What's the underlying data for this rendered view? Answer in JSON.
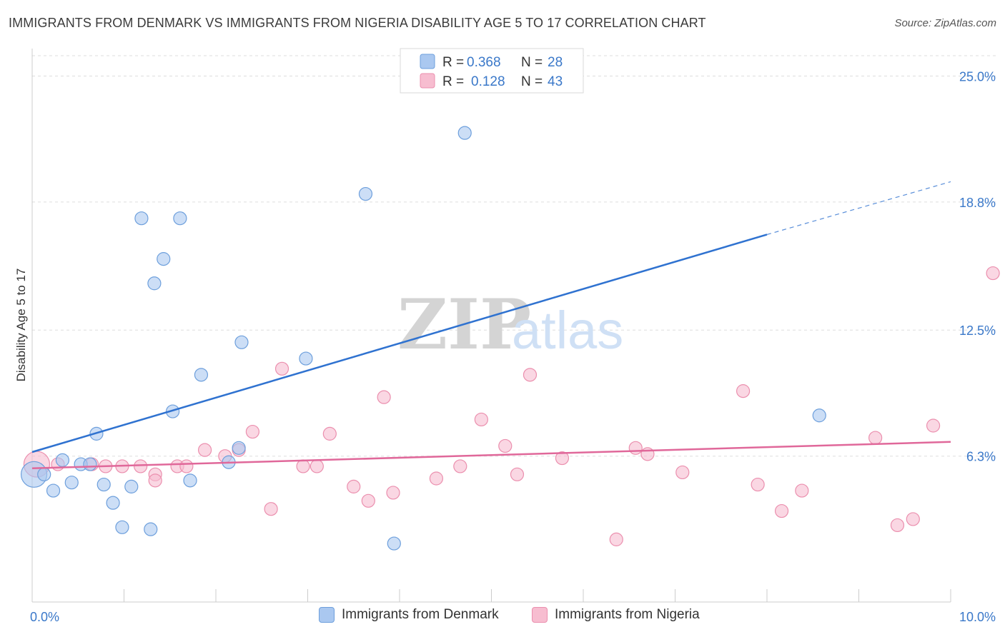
{
  "header": {
    "title": "IMMIGRANTS FROM DENMARK VS IMMIGRANTS FROM NIGERIA DISABILITY AGE 5 TO 17 CORRELATION CHART",
    "source": "Source: ZipAtlas.com"
  },
  "watermark": {
    "part1": "ZIP",
    "part2": "atlas"
  },
  "colors": {
    "denmark_fill": "#aac8f0",
    "denmark_stroke": "#6d9fdc",
    "denmark_line": "#2f72d0",
    "nigeria_fill": "#f7bdd0",
    "nigeria_stroke": "#eb8fae",
    "nigeria_line": "#e0689a",
    "axis_text": "#3a78c9",
    "grid": "#dddddd"
  },
  "legend_top": {
    "rows": [
      {
        "r_label": "R =",
        "r_value": "0.368",
        "n_label": "N =",
        "n_value": "28"
      },
      {
        "r_label": "R =",
        "r_value": "0.128",
        "n_label": "N =",
        "n_value": "43"
      }
    ]
  },
  "legend_bottom": {
    "items": [
      {
        "label": "Immigrants from Denmark"
      },
      {
        "label": "Immigrants from Nigeria"
      }
    ]
  },
  "chart_data": {
    "type": "scatter",
    "xlabel": "",
    "ylabel": "Disability Age 5 to 17",
    "xlim": [
      0,
      10
    ],
    "ylim": [
      0,
      26
    ],
    "x_tick_labels": [
      {
        "value": 0,
        "label": "0.0%"
      },
      {
        "value": 10,
        "label": "10.0%"
      }
    ],
    "x_minor_ticks": [
      0,
      1,
      2,
      3,
      4,
      5,
      6,
      7,
      8,
      9,
      10
    ],
    "y_ticks": [
      {
        "value": 6.3,
        "label": "6.3%"
      },
      {
        "value": 12.5,
        "label": "12.5%"
      },
      {
        "value": 18.8,
        "label": "18.8%"
      },
      {
        "value": 25.0,
        "label": "25.0%"
      }
    ],
    "grid": "horizontal-dashed",
    "legend": "top-center",
    "series": [
      {
        "name": "Immigrants from Denmark",
        "points": [
          [
            0.02,
            5.4
          ],
          [
            0.13,
            5.4
          ],
          [
            0.23,
            4.6
          ],
          [
            0.33,
            6.1
          ],
          [
            0.43,
            5.0
          ],
          [
            0.53,
            5.9
          ],
          [
            0.63,
            5.9
          ],
          [
            0.7,
            7.4
          ],
          [
            0.78,
            4.9
          ],
          [
            0.88,
            4.0
          ],
          [
            0.98,
            2.8
          ],
          [
            1.08,
            4.8
          ],
          [
            1.19,
            18.0
          ],
          [
            1.29,
            2.7
          ],
          [
            1.33,
            14.8
          ],
          [
            1.43,
            16.0
          ],
          [
            1.53,
            8.5
          ],
          [
            1.61,
            18.0
          ],
          [
            1.72,
            5.1
          ],
          [
            1.84,
            10.3
          ],
          [
            2.14,
            6.0
          ],
          [
            2.25,
            6.7
          ],
          [
            2.28,
            11.9
          ],
          [
            2.98,
            11.1
          ],
          [
            3.63,
            19.2
          ],
          [
            3.94,
            2.0
          ],
          [
            4.71,
            22.2
          ],
          [
            8.57,
            8.3
          ]
        ],
        "sizes": [
          [
            0.02,
            30
          ]
        ],
        "trend": {
          "x": [
            0,
            8
          ],
          "y": [
            6.5,
            17.2
          ],
          "dashed_to": [
            10,
            19.8
          ]
        }
      },
      {
        "name": "Immigrants from Nigeria",
        "points": [
          [
            0.05,
            5.9
          ],
          [
            0.28,
            5.9
          ],
          [
            0.65,
            5.9
          ],
          [
            0.8,
            5.8
          ],
          [
            0.98,
            5.8
          ],
          [
            1.18,
            5.8
          ],
          [
            1.34,
            5.4
          ],
          [
            1.34,
            5.1
          ],
          [
            1.58,
            5.8
          ],
          [
            1.68,
            5.8
          ],
          [
            1.88,
            6.6
          ],
          [
            2.1,
            6.3
          ],
          [
            2.25,
            6.6
          ],
          [
            2.4,
            7.5
          ],
          [
            2.6,
            3.7
          ],
          [
            2.72,
            10.6
          ],
          [
            2.95,
            5.8
          ],
          [
            3.1,
            5.8
          ],
          [
            3.24,
            7.4
          ],
          [
            3.5,
            4.8
          ],
          [
            3.66,
            4.1
          ],
          [
            3.83,
            9.2
          ],
          [
            3.93,
            4.5
          ],
          [
            4.4,
            5.2
          ],
          [
            4.66,
            5.8
          ],
          [
            4.89,
            8.1
          ],
          [
            5.15,
            6.8
          ],
          [
            5.28,
            5.4
          ],
          [
            5.42,
            10.3
          ],
          [
            5.77,
            6.2
          ],
          [
            6.36,
            2.2
          ],
          [
            6.57,
            6.7
          ],
          [
            6.7,
            6.4
          ],
          [
            7.08,
            5.5
          ],
          [
            7.74,
            9.5
          ],
          [
            7.9,
            4.9
          ],
          [
            8.16,
            3.6
          ],
          [
            8.38,
            4.6
          ],
          [
            9.18,
            7.2
          ],
          [
            9.42,
            2.9
          ],
          [
            9.59,
            3.2
          ],
          [
            9.81,
            7.8
          ],
          [
            10.46,
            15.3
          ]
        ],
        "sizes": [
          [
            0.05,
            30
          ]
        ],
        "trend": {
          "x": [
            0,
            10
          ],
          "y": [
            5.7,
            7.0
          ]
        }
      }
    ]
  }
}
